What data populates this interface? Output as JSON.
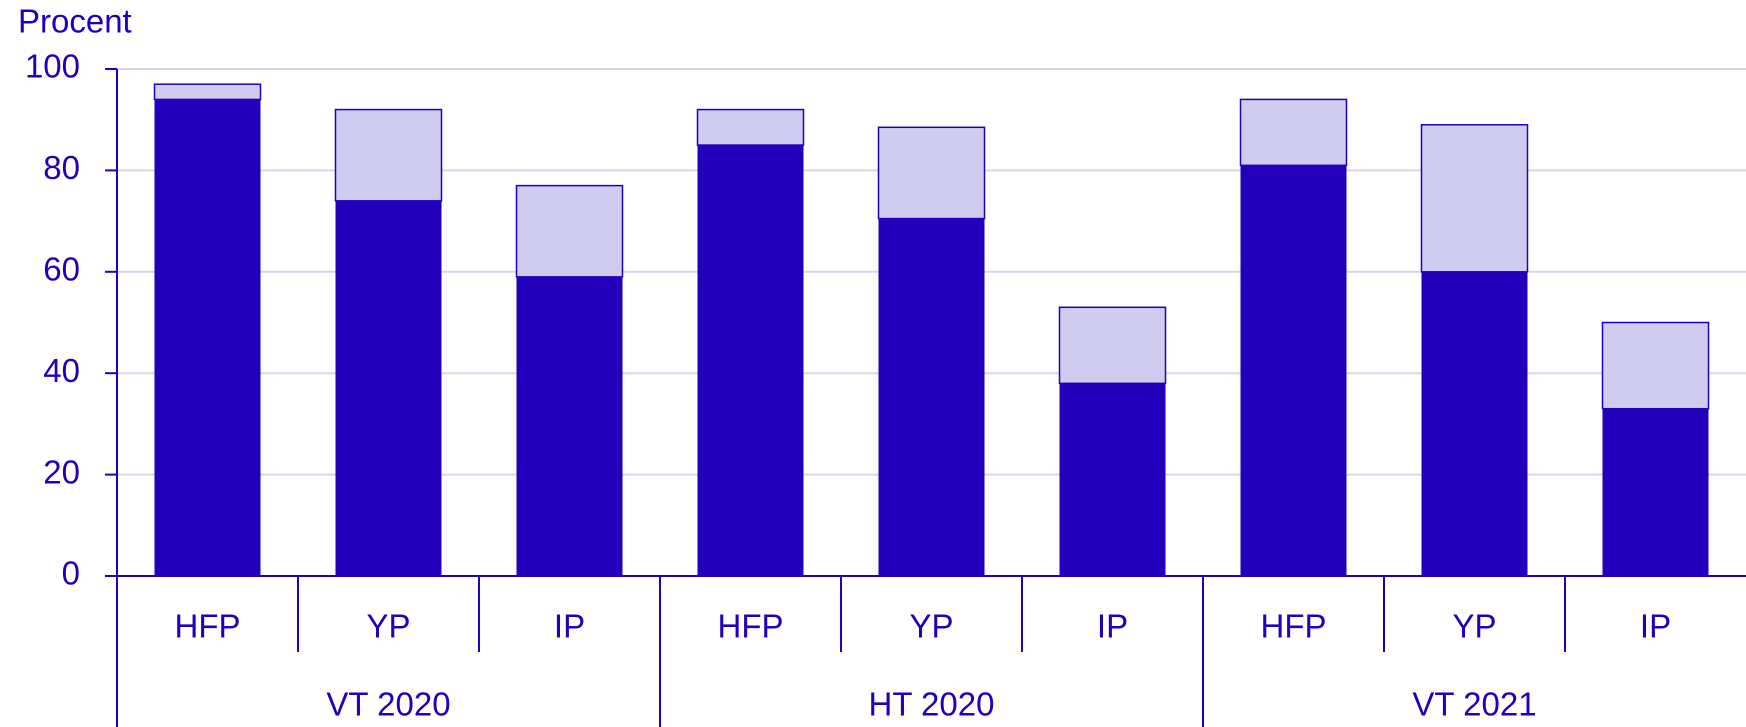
{
  "chart_data": {
    "type": "stacked_bar",
    "y_axis_label": "Procent",
    "categories": [
      "HFP",
      "YP",
      "IP",
      "HFP",
      "YP",
      "IP",
      "HFP",
      "YP",
      "IP"
    ],
    "groups": [
      "VT 2020",
      "HT 2020",
      "VT 2021"
    ],
    "series": [
      {
        "color": "#2200bb",
        "values": [
          94,
          74,
          59,
          85,
          70.5,
          38,
          81,
          60,
          33
        ]
      },
      {
        "color": "#d0ccf0",
        "values": [
          3,
          18,
          18,
          7,
          18,
          15,
          13,
          29,
          17
        ]
      }
    ],
    "ylim": [
      0,
      100
    ],
    "yticks": [
      0,
      20,
      40,
      60,
      80,
      100
    ],
    "grid": true
  }
}
